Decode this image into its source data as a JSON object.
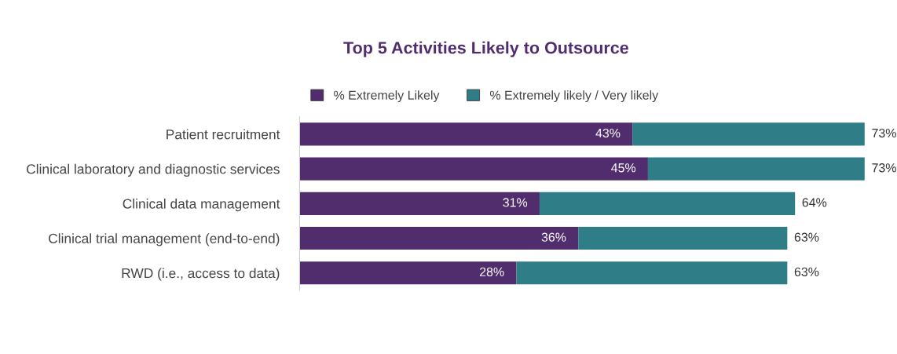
{
  "chart_data": {
    "type": "bar",
    "orientation": "horizontal",
    "stacked": true,
    "title": "Top 5 Activities Likely to Outsource",
    "categories": [
      "Patient recruitment",
      "Clinical laboratory and diagnostic services",
      "Clinical data management",
      "Clinical trial management (end-to-end)",
      "RWD (i.e., access to data)"
    ],
    "series": [
      {
        "name": "% Extremely Likely",
        "color": "#512d6d",
        "values": [
          43,
          45,
          31,
          36,
          28
        ],
        "value_labels": [
          "43%",
          "45%",
          "31%",
          "36%",
          "28%"
        ]
      },
      {
        "name": "% Extremely likely / Very likely",
        "color": "#2e7d87",
        "values": [
          30,
          28,
          33,
          27,
          35
        ]
      }
    ],
    "totals": [
      "73%",
      "73%",
      "64%",
      "63%",
      "63%"
    ],
    "legend": "top",
    "grid": false
  }
}
